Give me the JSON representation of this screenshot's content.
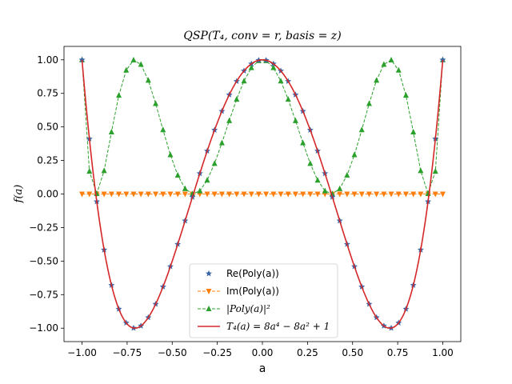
{
  "chart_data": {
    "type": "line",
    "title": "QSP(T₄, conv = r, basis = z)",
    "xlabel": "a",
    "ylabel": "f(a)",
    "xlim": [
      -1.1,
      1.1
    ],
    "ylim": [
      -1.1,
      1.1
    ],
    "xticks": [
      -1.0,
      -0.75,
      -0.5,
      -0.25,
      0.0,
      0.25,
      0.5,
      0.75,
      1.0
    ],
    "xtick_labels": [
      "−1.00",
      "−0.75",
      "−0.50",
      "−0.25",
      "0.00",
      "0.25",
      "0.50",
      "0.75",
      "1.00"
    ],
    "yticks": [
      -1.0,
      -0.75,
      -0.5,
      -0.25,
      0.0,
      0.25,
      0.5,
      0.75,
      1.0
    ],
    "ytick_labels": [
      "−1.00",
      "−0.75",
      "−0.50",
      "−0.25",
      "0.00",
      "0.25",
      "0.50",
      "0.75",
      "1.00"
    ],
    "grid": false,
    "legend_position": "lower-center",
    "sample_points": 50,
    "series": [
      {
        "name": "Re(Poly(a))",
        "kind": "scatter",
        "marker": "star",
        "color": "#3a66a8",
        "function": "T4"
      },
      {
        "name": "Im(Poly(a))",
        "kind": "line-marker",
        "marker": "triangle-down",
        "dash": true,
        "color": "#ff7f0e",
        "function": "zero"
      },
      {
        "name": "|Poly(a)|²",
        "kind": "line-marker",
        "marker": "triangle-up",
        "dash": true,
        "color": "#2ca02c",
        "function": "T4_squared"
      },
      {
        "name": "T₄(a) = 8a⁴ − 8a² + 1",
        "kind": "line",
        "color": "#d62728",
        "function": "T4"
      }
    ]
  }
}
